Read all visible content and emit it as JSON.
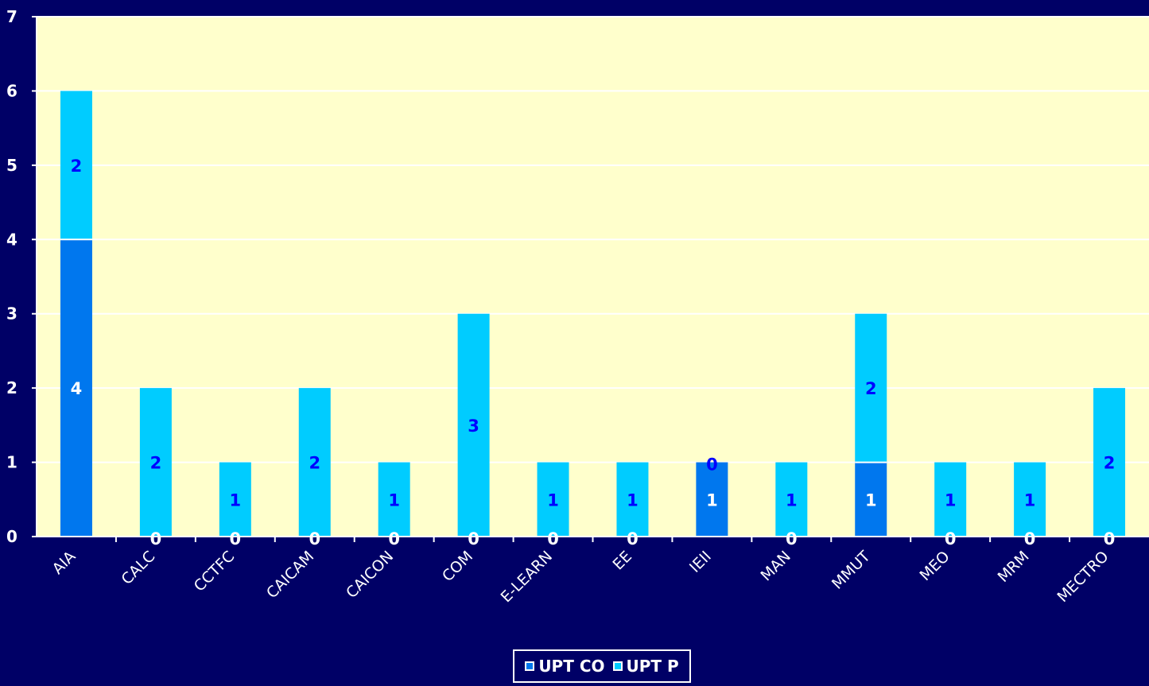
{
  "chart_data": {
    "type": "bar",
    "stacked": true,
    "categories": [
      "AIA",
      "CALC",
      "CCTFC",
      "CAICAM",
      "CAICON",
      "COM",
      "E-LEARN",
      "EE",
      "IEII",
      "MAN",
      "MMUT",
      "MEO",
      "MRM",
      "MECTRO"
    ],
    "series": [
      {
        "name": "UPT CO",
        "color": "#0077EE",
        "values": [
          4,
          0,
          0,
          0,
          0,
          0,
          0,
          0,
          1,
          0,
          1,
          0,
          0,
          0
        ]
      },
      {
        "name": "UPT P",
        "color": "#00CCFF",
        "values": [
          2,
          2,
          1,
          2,
          1,
          3,
          1,
          1,
          0,
          1,
          2,
          1,
          1,
          2
        ]
      }
    ],
    "ylim": [
      0,
      7
    ],
    "yticks": [
      0,
      1,
      2,
      3,
      4,
      5,
      6,
      7
    ],
    "grid": true,
    "legend_position": "bottom",
    "plot_background": "#FFFFCC",
    "page_background": "#000066",
    "data_label_color": "#0000FF",
    "data_label_color_on_dark": "#FFFFFF",
    "title": "",
    "xlabel": "",
    "ylabel": ""
  }
}
